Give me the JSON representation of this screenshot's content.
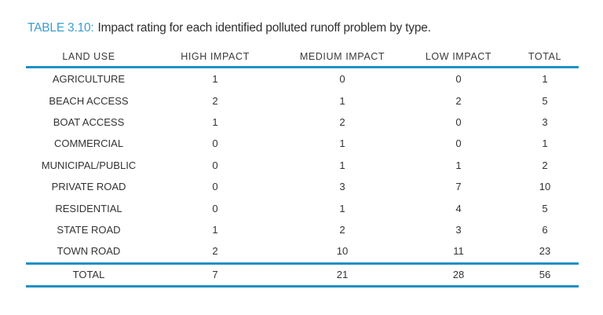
{
  "caption": {
    "label": "TABLE 3.10:",
    "text": "Impact rating for each identified polluted runoff problem by type."
  },
  "colors": {
    "caption_label_blue": "#3a9ecd",
    "rule_blue": "#1f90c5",
    "text": "#333333",
    "background": "#ffffff"
  },
  "chart_data": {
    "type": "table",
    "title": "TABLE 3.10: Impact rating for each identified polluted runoff problem by type.",
    "columns": [
      "LAND USE",
      "HIGH IMPACT",
      "MEDIUM IMPACT",
      "LOW IMPACT",
      "TOTAL"
    ],
    "rows": [
      [
        "AGRICULTURE",
        1,
        0,
        0,
        1
      ],
      [
        "BEACH ACCESS",
        2,
        1,
        2,
        5
      ],
      [
        "BOAT ACCESS",
        1,
        2,
        0,
        3
      ],
      [
        "COMMERCIAL",
        0,
        1,
        0,
        1
      ],
      [
        "MUNICIPAL/PUBLIC",
        0,
        1,
        1,
        2
      ],
      [
        "PRIVATE ROAD",
        0,
        3,
        7,
        10
      ],
      [
        "RESIDENTIAL",
        0,
        1,
        4,
        5
      ],
      [
        "STATE ROAD",
        1,
        2,
        3,
        6
      ],
      [
        "TOWN ROAD",
        2,
        10,
        11,
        23
      ]
    ],
    "total_row": [
      "TOTAL",
      7,
      21,
      28,
      56
    ]
  }
}
